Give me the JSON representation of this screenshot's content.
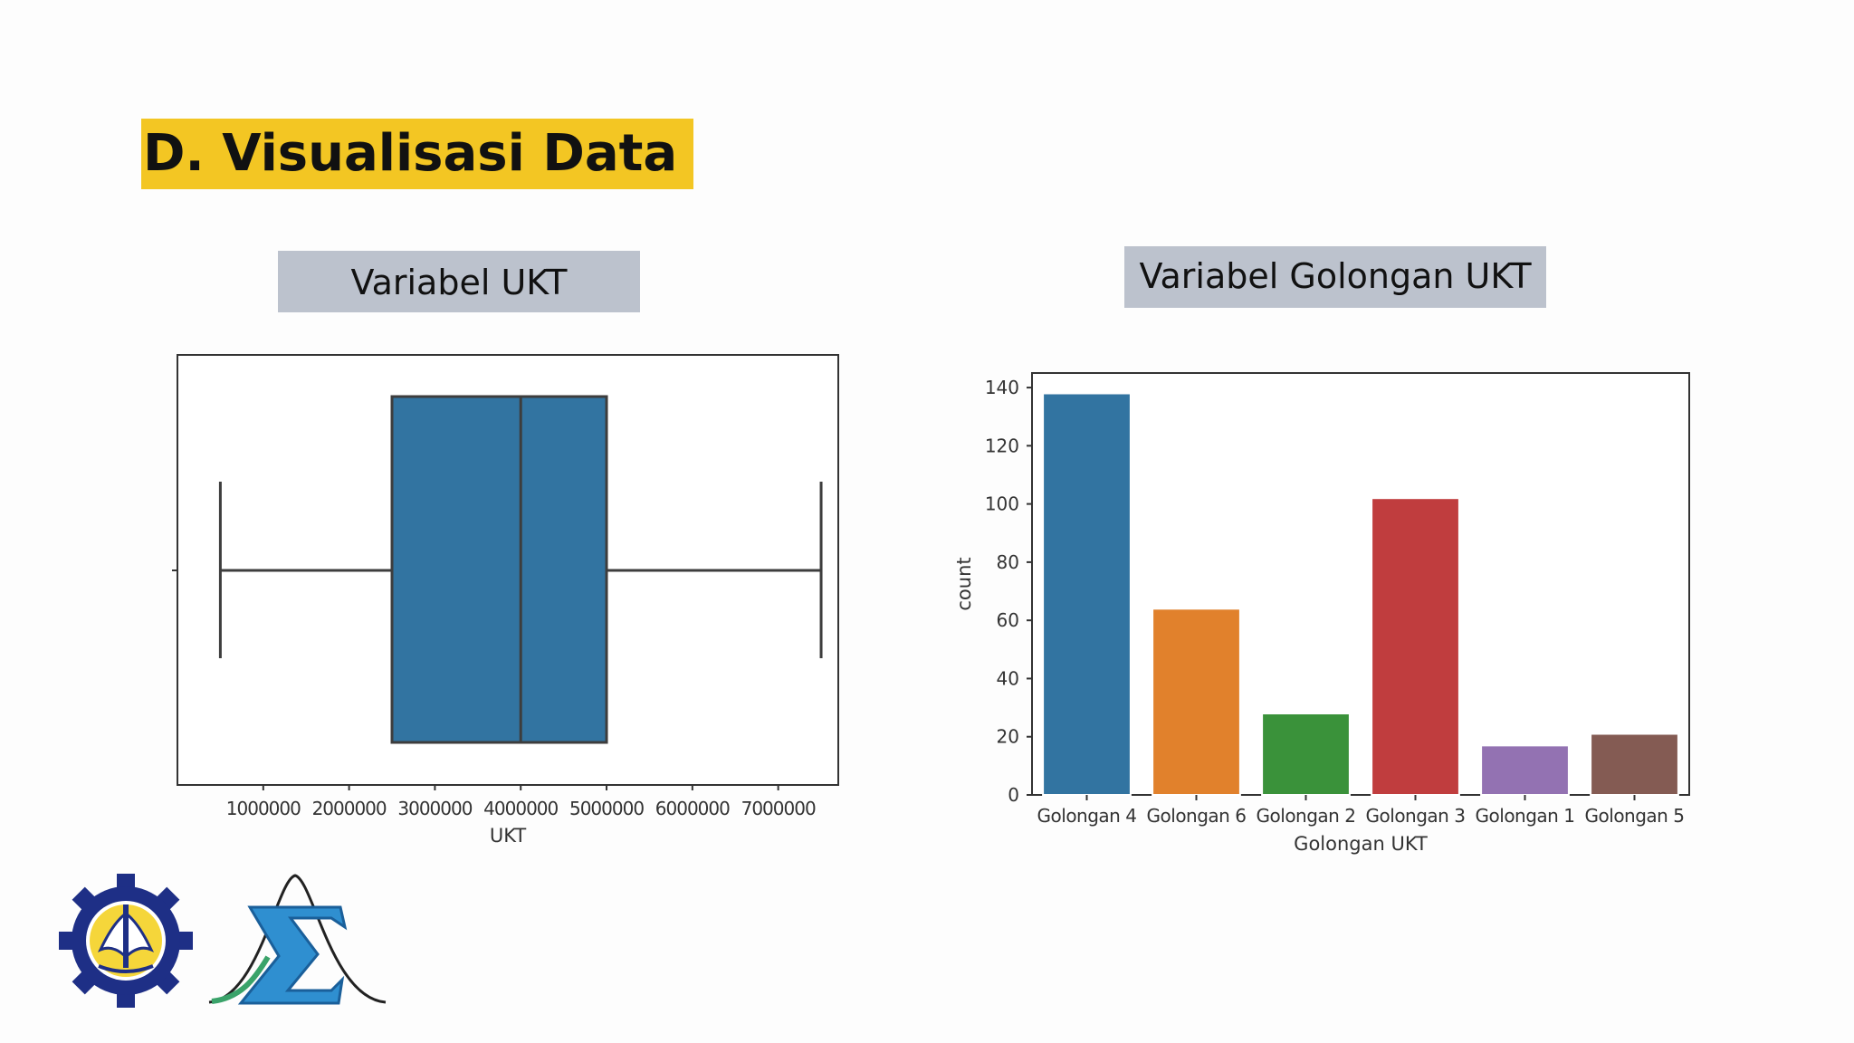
{
  "slide": {
    "title": "D. Visualisasi Data",
    "label_left": "Variabel UKT",
    "label_right": "Variabel Golongan UKT"
  },
  "chart_data": [
    {
      "type": "box",
      "orientation": "horizontal",
      "xlabel": "UKT",
      "ylabel": "",
      "xlim": [
        0,
        7700000
      ],
      "xticks": [
        1000000,
        2000000,
        3000000,
        4000000,
        5000000,
        6000000,
        7000000
      ],
      "xtick_labels": [
        "1000000",
        "2000000",
        "3000000",
        "4000000",
        "5000000",
        "6000000",
        "7000000"
      ],
      "stats": {
        "whisker_low": 500000,
        "q1": 2500000,
        "median": 4000000,
        "q3": 5000000,
        "whisker_high": 7500000
      },
      "color": "#3274a1",
      "line_color": "#3d3d3d",
      "grid": false
    },
    {
      "type": "bar",
      "xlabel": "Golongan UKT",
      "ylabel": "count",
      "categories": [
        "Golongan 4",
        "Golongan 6",
        "Golongan 2",
        "Golongan 3",
        "Golongan 1",
        "Golongan 5"
      ],
      "values": [
        138,
        64,
        28,
        102,
        17,
        21
      ],
      "colors": [
        "#3274a1",
        "#e1812c",
        "#3a923a",
        "#c03d3e",
        "#9372b2",
        "#845b53"
      ],
      "ylim": [
        0,
        145
      ],
      "yticks": [
        0,
        20,
        40,
        60,
        80,
        100,
        120,
        140
      ],
      "grid": false
    }
  ]
}
